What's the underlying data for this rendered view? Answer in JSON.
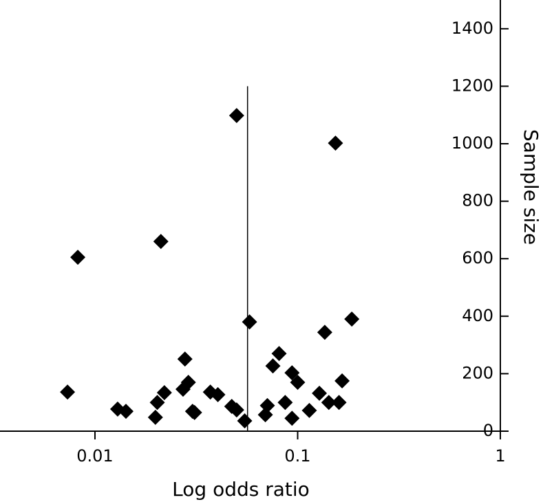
{
  "chart_data": {
    "type": "scatter",
    "x_label": "Log odds ratio",
    "y_label": "Sample size",
    "xscale": "log",
    "xlim": [
      0.0034,
      1
    ],
    "xticks": [
      0.01,
      0.1,
      1
    ],
    "ylim": [
      0,
      1500
    ],
    "yticks": [
      0,
      200,
      400,
      600,
      800,
      1000,
      1200,
      1400
    ],
    "y_axis_side": "right",
    "color": "#000000",
    "marker": "diamond",
    "reference_line": {
      "x": 0.0566,
      "y": [
        0,
        1200
      ]
    },
    "x": [
      0.00732,
      0.00823,
      0.01294,
      0.01422,
      0.01987,
      0.0203,
      0.02115,
      0.022,
      0.0272,
      0.0278,
      0.0289,
      0.0303,
      0.031,
      0.0371,
      0.0404,
      0.0473,
      0.05,
      0.05,
      0.0548,
      0.0579,
      0.0693,
      0.0709,
      0.0755,
      0.081,
      0.0868,
      0.0938,
      0.0938,
      0.1,
      0.1142,
      0.128,
      0.1361,
      0.1425,
      0.16,
      0.1537,
      0.1657,
      0.185
    ],
    "values": [
      136,
      605,
      77,
      69,
      48,
      100,
      660,
      134,
      146,
      251,
      170,
      69,
      65,
      136,
      127,
      86,
      74,
      1098,
      36,
      380,
      57,
      89,
      227,
      270,
      100,
      203,
      45,
      170,
      72,
      132,
      344,
      100,
      100,
      1002,
      175,
      390
    ]
  }
}
